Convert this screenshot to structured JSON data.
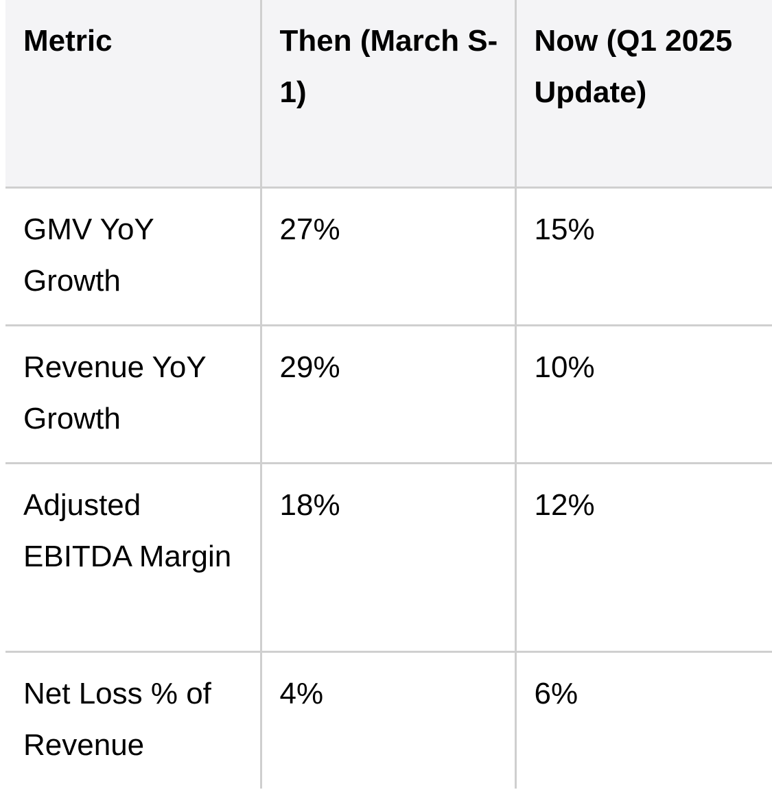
{
  "table": {
    "headers": [
      "Metric",
      "Then (March S-1)",
      "Now (Q1 2025 Update)"
    ],
    "rows": [
      [
        "GMV YoY Growth",
        "27%",
        "15%"
      ],
      [
        "Revenue YoY Growth",
        "29%",
        "10%"
      ],
      [
        "Adjusted EBITDA Margin",
        "18%",
        "12%"
      ],
      [
        "Net Loss % of Revenue",
        "4%",
        "6%"
      ]
    ]
  },
  "colors": {
    "header_background": "#f4f4f6",
    "grid_line": "#cfcfcf",
    "text": "#000000"
  }
}
